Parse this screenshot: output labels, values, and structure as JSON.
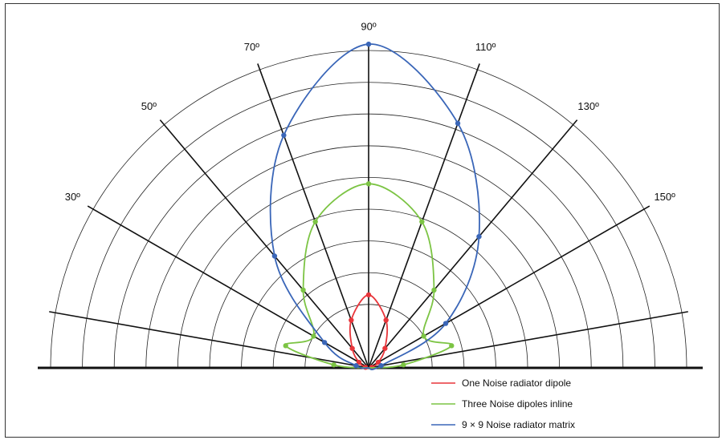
{
  "chart_data": {
    "type": "polar",
    "title": "",
    "angle_labels": [
      "30º",
      "50º",
      "70º",
      "90º",
      "110º",
      "130º",
      "150º"
    ],
    "spokes_deg": [
      10,
      30,
      50,
      70,
      90,
      110,
      130,
      150,
      170
    ],
    "rlim": [
      0,
      10
    ],
    "ring_values": [
      2,
      3,
      4,
      5,
      6,
      7,
      8,
      9,
      10
    ],
    "grid": true,
    "legend_position": "bottom-right",
    "series": [
      {
        "name": "One Noise radiator dipole",
        "color": "#e8353a",
        "points": [
          {
            "theta": 10,
            "r": 0.1
          },
          {
            "theta": 30,
            "r": 0.35
          },
          {
            "theta": 50,
            "r": 0.8
          },
          {
            "theta": 70,
            "r": 1.6
          },
          {
            "theta": 90,
            "r": 2.3
          },
          {
            "theta": 110,
            "r": 1.6
          },
          {
            "theta": 130,
            "r": 0.8
          },
          {
            "theta": 150,
            "r": 0.35
          },
          {
            "theta": 170,
            "r": 0.1
          }
        ]
      },
      {
        "name": "Three Noise dipoles inline",
        "color": "#7cc444",
        "points": [
          {
            "theta": 5,
            "r": 1.1
          },
          {
            "theta": 15,
            "r": 2.7
          },
          {
            "theta": 30,
            "r": 2.0
          },
          {
            "theta": 50,
            "r": 3.2
          },
          {
            "theta": 70,
            "r": 4.9
          },
          {
            "theta": 90,
            "r": 5.8
          },
          {
            "theta": 110,
            "r": 4.9
          },
          {
            "theta": 130,
            "r": 3.2
          },
          {
            "theta": 150,
            "r": 2.0
          },
          {
            "theta": 165,
            "r": 2.7
          },
          {
            "theta": 175,
            "r": 1.1
          }
        ]
      },
      {
        "name": "9 x 9 Noise radiator matrix",
        "color": "#3a66b8",
        "points": [
          {
            "theta": 10,
            "r": 0.4
          },
          {
            "theta": 30,
            "r": 1.6
          },
          {
            "theta": 50,
            "r": 4.6
          },
          {
            "theta": 70,
            "r": 7.8
          },
          {
            "theta": 90,
            "r": 10.2
          },
          {
            "theta": 110,
            "r": 8.2
          },
          {
            "theta": 130,
            "r": 5.4
          },
          {
            "theta": 150,
            "r": 2.8
          },
          {
            "theta": 170,
            "r": 0.4
          }
        ]
      }
    ]
  },
  "legend": [
    {
      "label": "One Noise radiator dipole",
      "color": "#e8353a"
    },
    {
      "label": "Three Noise dipoles inline",
      "color": "#7cc444"
    },
    {
      "label": "9 × 9 Noise radiator matrix",
      "color": "#3a66b8"
    }
  ]
}
